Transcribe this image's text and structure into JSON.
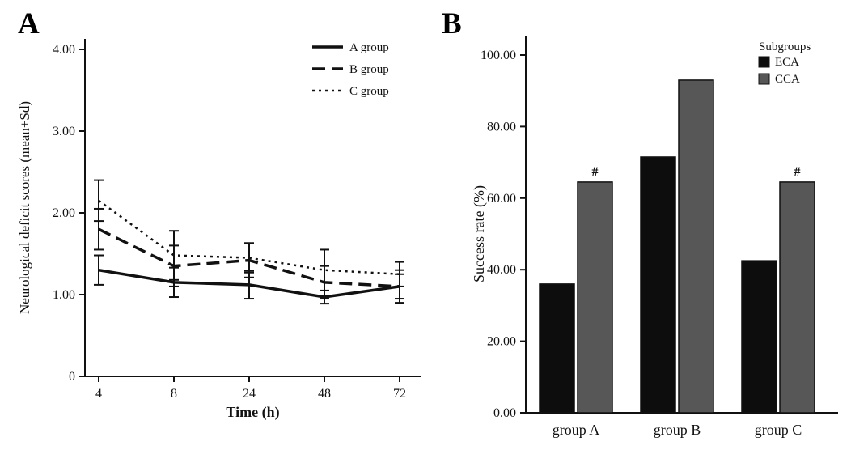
{
  "panels": [
    {
      "label": "A"
    },
    {
      "label": "B"
    }
  ],
  "chart_data": [
    {
      "type": "line",
      "panel": "A",
      "title": "",
      "xlabel": "Time (h)",
      "ylabel": "Neurological deficit scores (mean+Sd)",
      "x": [
        "4",
        "8",
        "24",
        "48",
        "72"
      ],
      "ylim": [
        0,
        4.2
      ],
      "yticks": [
        0,
        1,
        2,
        3,
        4
      ],
      "ytick_labels": [
        "0",
        "1.00",
        "2.00",
        "3.00",
        "4.00"
      ],
      "grid": false,
      "legend_position": "top-right",
      "series": [
        {
          "name": "A group",
          "style": "solid",
          "color": "#111111",
          "values": [
            1.3,
            1.15,
            1.12,
            0.97,
            1.1
          ],
          "errors": [
            0.18,
            0.18,
            0.17,
            0.08,
            0.15
          ]
        },
        {
          "name": "B group",
          "style": "dashed",
          "color": "#111111",
          "values": [
            1.8,
            1.35,
            1.42,
            1.15,
            1.1
          ],
          "errors": [
            0.25,
            0.25,
            0.21,
            0.2,
            0.2
          ]
        },
        {
          "name": "C group",
          "style": "dotted",
          "color": "#111111",
          "values": [
            2.15,
            1.48,
            1.45,
            1.3,
            1.25
          ],
          "errors": [
            0.25,
            0.3,
            0.18,
            0.25,
            0.15
          ]
        }
      ]
    },
    {
      "type": "bar",
      "panel": "B",
      "title": "",
      "xlabel": "",
      "ylabel": "Success rate (%)",
      "categories": [
        "group A",
        "group B",
        "group C"
      ],
      "ylim": [
        0,
        105
      ],
      "yticks": [
        0,
        20,
        40,
        60,
        80,
        100
      ],
      "ytick_labels": [
        "0.00",
        "20.00",
        "40.00",
        "60.00",
        "80.00",
        "100.00"
      ],
      "grid": false,
      "legend_title": "Subgroups",
      "legend_position": "top-right",
      "series": [
        {
          "name": "ECA",
          "color": "#0d0d0d",
          "values": [
            36.0,
            71.5,
            42.5
          ]
        },
        {
          "name": "CCA",
          "color": "#575757",
          "values": [
            64.5,
            93.0,
            64.5
          ]
        }
      ],
      "annotations": [
        {
          "text": "#",
          "category": "group A",
          "series": "CCA"
        },
        {
          "text": "#",
          "category": "group C",
          "series": "CCA"
        }
      ]
    }
  ]
}
